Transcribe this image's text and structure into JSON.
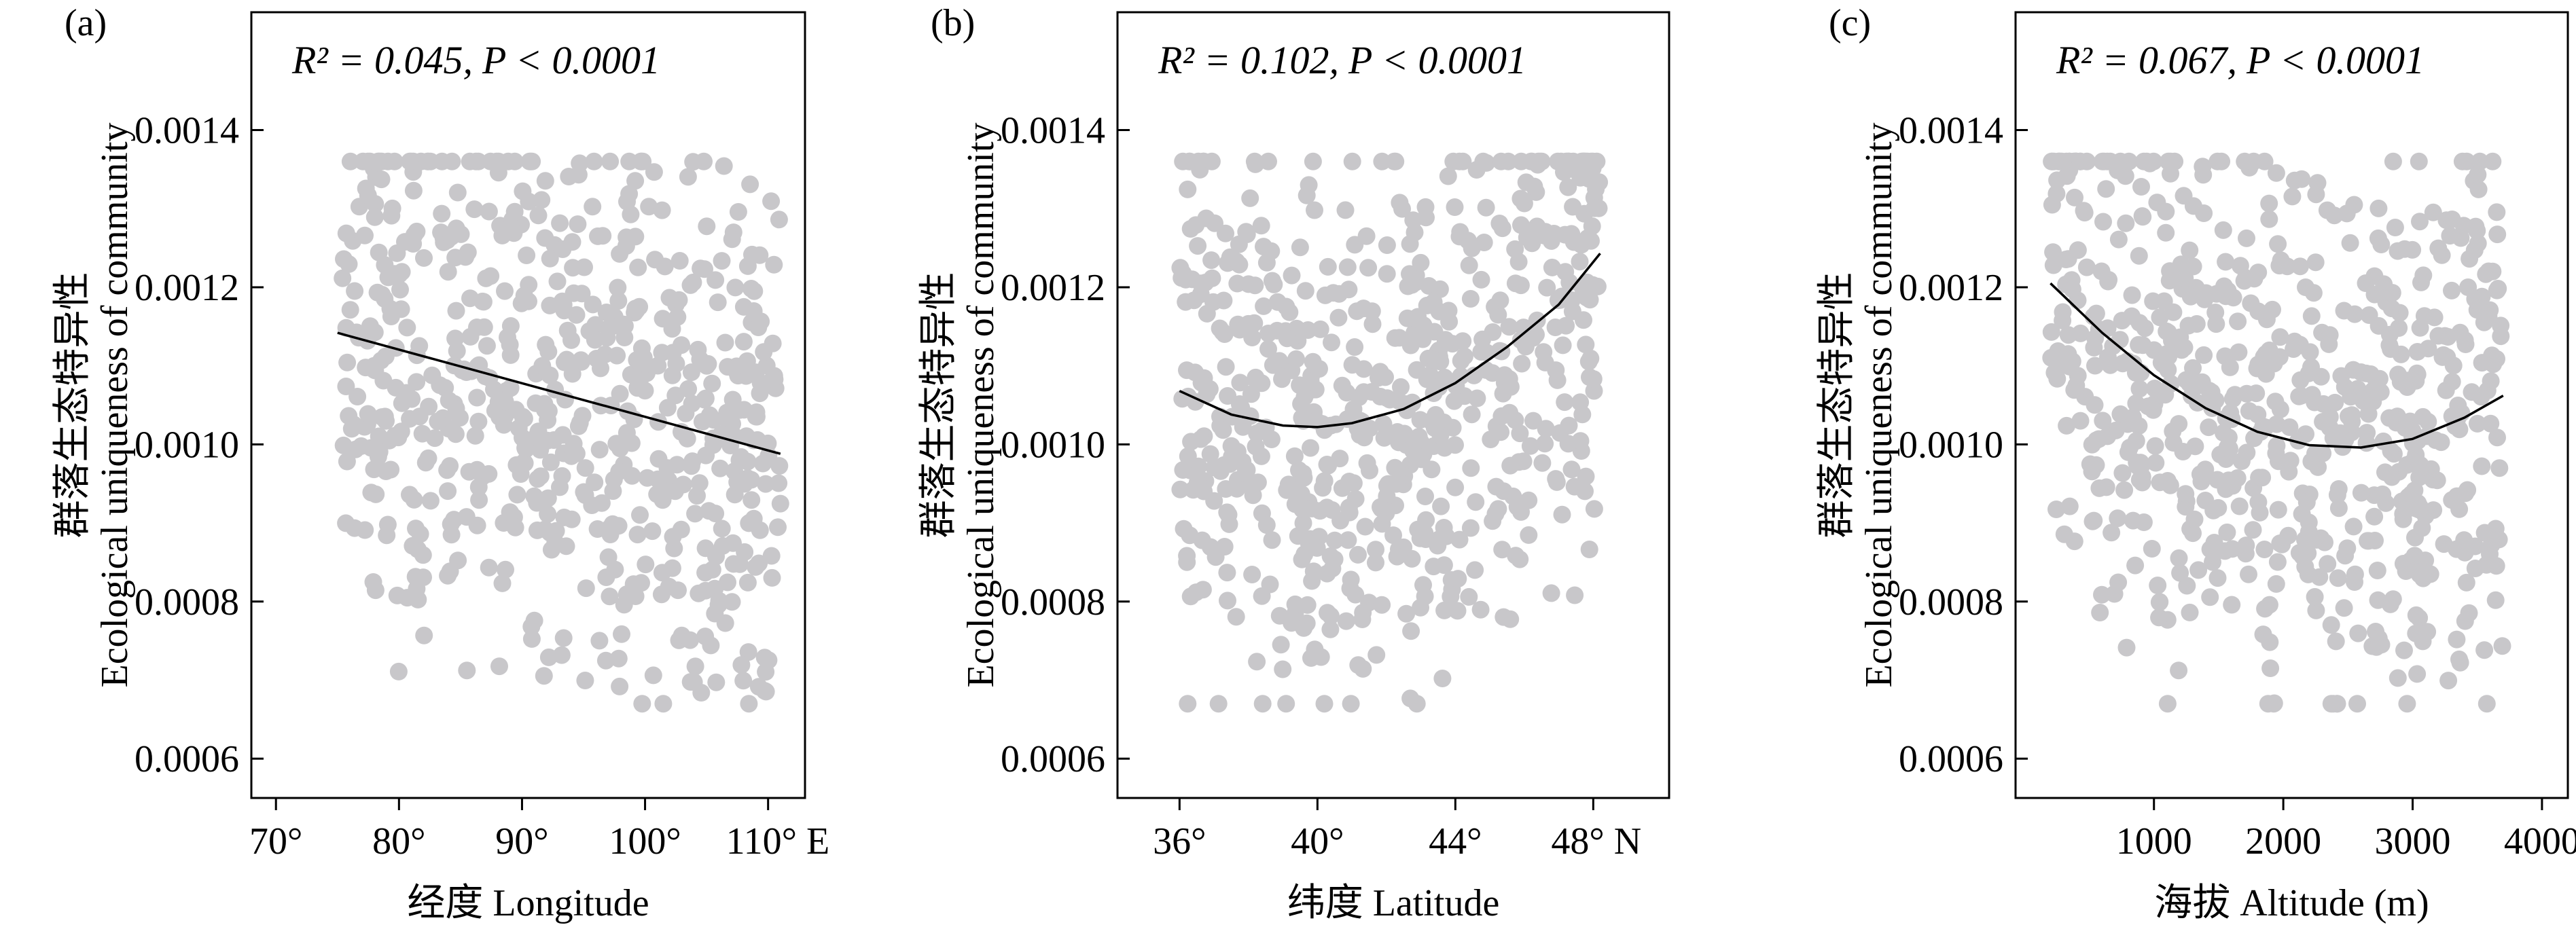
{
  "chart_data": [
    {
      "type": "scatter",
      "panel_label": "(a)",
      "annotation": {
        "r2": "R² = 0.045,",
        "p": "P < 0.0001"
      },
      "xlabel": "经度 Longitude",
      "ylabel_cn": "群落生态特异性",
      "ylabel_en": "Ecological uniqueness of community",
      "xlim": [
        68,
        113
      ],
      "ylim": [
        0.00055,
        0.00155
      ],
      "xticks": [
        70,
        80,
        90,
        100,
        110
      ],
      "xtick_labels": [
        "70°",
        "80°",
        "90°",
        "100°",
        "110° E"
      ],
      "yticks": [
        0.0006,
        0.0008,
        0.001,
        0.0012,
        0.0014
      ],
      "ytick_labels": [
        "0.0006",
        "0.0008",
        "0.0010",
        "0.0012",
        "0.0014"
      ],
      "x_range": [
        75,
        111
      ],
      "y_range": [
        0.00067,
        0.00136
      ],
      "fit": {
        "type": "linear",
        "x": [
          75,
          111
        ],
        "y": [
          0.001142,
          0.000988
        ]
      },
      "point_color": "#c8c7ca",
      "fit_color": "#000000",
      "n_points": 650,
      "grid": false
    },
    {
      "type": "scatter",
      "panel_label": "(b)",
      "annotation": {
        "r2": "R² = 0.102,",
        "p": "P < 0.0001"
      },
      "xlabel": "纬度 Latitude",
      "ylabel_cn": "群落生态特异性",
      "ylabel_en": "Ecological uniqueness of community",
      "xlim": [
        34.2,
        50.2
      ],
      "ylim": [
        0.00055,
        0.00155
      ],
      "xticks": [
        36,
        40,
        44,
        48
      ],
      "xtick_labels": [
        "36°",
        "40°",
        "44°",
        "48° N"
      ],
      "yticks": [
        0.0006,
        0.0008,
        0.001,
        0.0012,
        0.0014
      ],
      "ytick_labels": [
        "0.0006",
        "0.0008",
        "0.0010",
        "0.0012",
        "0.0014"
      ],
      "x_range": [
        36,
        48.2
      ],
      "y_range": [
        0.00067,
        0.00136
      ],
      "fit": {
        "type": "quadratic",
        "x": [
          36,
          37.5,
          39,
          40,
          41,
          42.5,
          44,
          45.5,
          47,
          48.2
        ],
        "y": [
          0.001068,
          0.001038,
          0.001024,
          0.001022,
          0.001027,
          0.001045,
          0.001078,
          0.001124,
          0.001178,
          0.001243
        ]
      },
      "point_color": "#c8c7ca",
      "fit_color": "#000000",
      "n_points": 650,
      "grid": false
    },
    {
      "type": "scatter",
      "panel_label": "(c)",
      "annotation": {
        "r2": "R² = 0.067,",
        "p": "P < 0.0001"
      },
      "xlabel": "海拔  Altitude (m)",
      "ylabel_cn": "群落生态特异性",
      "ylabel_en": "Ecological uniqueness of community",
      "xlim": [
        -70,
        4200
      ],
      "ylim": [
        0.00055,
        0.00155
      ],
      "xticks": [
        1000,
        2000,
        3000,
        4000
      ],
      "xtick_labels": [
        "1000",
        "2000",
        "3000",
        "4000"
      ],
      "yticks": [
        0.0006,
        0.0008,
        0.001,
        0.0012,
        0.0014
      ],
      "ytick_labels": [
        "0.0006",
        "0.0008",
        "0.0010",
        "0.0012",
        "0.0014"
      ],
      "x_range": [
        200,
        3700
      ],
      "y_range": [
        0.00067,
        0.00136
      ],
      "fit": {
        "type": "quadratic",
        "x": [
          200,
          600,
          1000,
          1400,
          1800,
          2200,
          2600,
          3000,
          3400,
          3700
        ],
        "y": [
          0.001205,
          0.001142,
          0.001088,
          0.001046,
          0.001016,
          0.000999,
          0.000996,
          0.001007,
          0.001034,
          0.001062
        ]
      },
      "point_color": "#c8c7ca",
      "fit_color": "#000000",
      "n_points": 700,
      "grid": false
    }
  ]
}
